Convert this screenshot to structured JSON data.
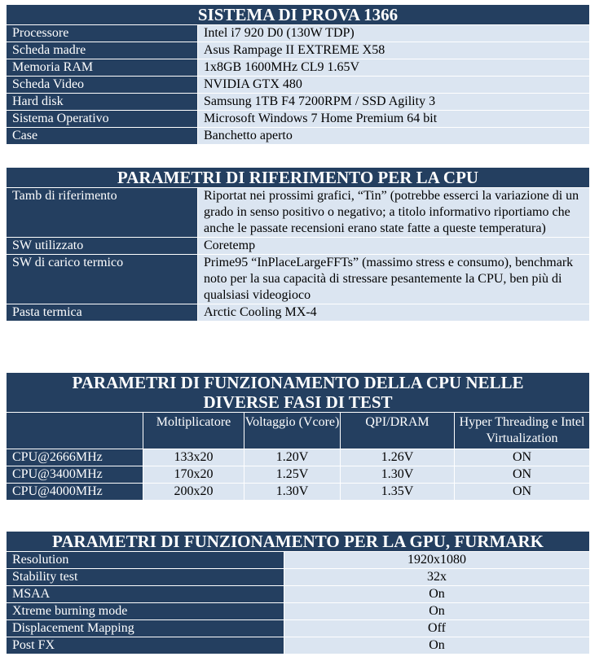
{
  "system": {
    "title": "SISTEMA DI PROVA 1366",
    "rows": [
      {
        "label": "Processore",
        "value": "Intel i7 920 D0 (130W TDP)"
      },
      {
        "label": "Scheda madre",
        "value": "Asus Rampage II EXTREME X58"
      },
      {
        "label": "Memoria RAM",
        "value": "1x8GB 1600MHz CL9 1.65V"
      },
      {
        "label": "Scheda Video",
        "value": "NVIDIA GTX 480"
      },
      {
        "label": "Hard disk",
        "value": "Samsung 1TB F4 7200RPM / SSD Agility 3"
      },
      {
        "label": "Sistema Operativo",
        "value": "Microsoft Windows 7 Home Premium 64 bit"
      },
      {
        "label": "Case",
        "value": "Banchetto aperto"
      }
    ]
  },
  "cpu_ref": {
    "title": "PARAMETRI DI RIFERIMENTO PER LA CPU",
    "rows": [
      {
        "label": "Tamb di riferimento",
        "value": "Riportat nei prossimi grafici, “Tin” (potrebbe esserci la variazione di un grado in senso positivo o negativo; a titolo informativo riportiamo che anche le passate recensioni erano state fatte a queste temperatura)"
      },
      {
        "label": "SW utilizzato",
        "value": "Coretemp"
      },
      {
        "label": "SW di carico termico",
        "value": "Prime95 “InPlaceLargeFFTs” (massimo stress e consumo), benchmark noto per la sua capacità di stressare pesantemente la CPU, ben più di qualsiasi videogioco"
      },
      {
        "label": "Pasta termica",
        "value": "Arctic Cooling MX-4"
      }
    ]
  },
  "cpu_run": {
    "title": "PARAMETRI DI FUNZIONAMENTO DELLA CPU NELLE DIVERSE FASI DI TEST",
    "columns": [
      "",
      "Moltiplicatore",
      "Voltaggio (Vcore)",
      "QPI/DRAM",
      "Hyper Threading e Intel Virtualization"
    ],
    "rows": [
      [
        "CPU@2666MHz",
        "133x20",
        "1.20V",
        "1.26V",
        "ON"
      ],
      [
        "CPU@3400MHz",
        "170x20",
        "1.25V",
        "1.30V",
        "ON"
      ],
      [
        "CPU@4000MHz",
        "200x20",
        "1.30V",
        "1.35V",
        "ON"
      ]
    ]
  },
  "gpu": {
    "title": "PARAMETRI DI FUNZIONAMENTO PER LA GPU, FURMARK",
    "rows": [
      {
        "label": "Resolution",
        "value": "1920x1080"
      },
      {
        "label": "Stability test",
        "value": "32x"
      },
      {
        "label": "MSAA",
        "value": "On"
      },
      {
        "label": "Xtreme burning mode",
        "value": "On"
      },
      {
        "label": "Displacement Mapping",
        "value": "Off"
      },
      {
        "label": "Post FX",
        "value": "On"
      }
    ]
  },
  "colors": {
    "header": "#243f60",
    "cell": "#dbe5f1"
  }
}
